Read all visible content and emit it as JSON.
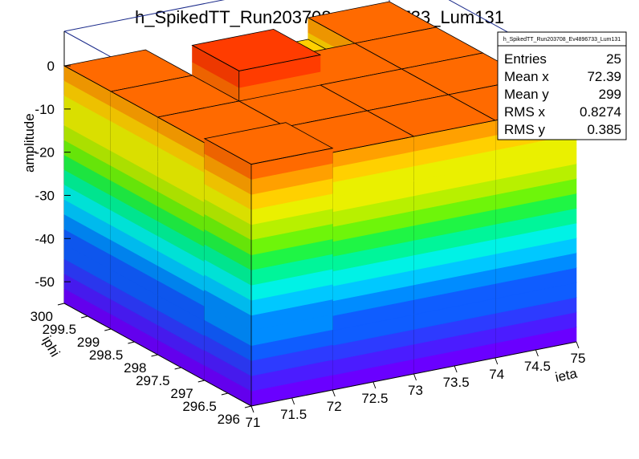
{
  "chart_data": {
    "type": "lego3d",
    "title": "h_SpikedTT_Run203708_Ev4896733_Lum131",
    "xlabel": "ieta",
    "ylabel": "iphi",
    "zlabel": "amplitude",
    "x_range": [
      71,
      75
    ],
    "y_range": [
      296,
      300
    ],
    "z_range": [
      -55,
      8
    ],
    "x_ticks": [
      "71",
      "71.5",
      "72",
      "72.5",
      "73",
      "73.5",
      "74",
      "74.5",
      "75"
    ],
    "y_ticks": [
      "296",
      "296.5",
      "297",
      "297.5",
      "298",
      "298.5",
      "299",
      "299.5",
      "300"
    ],
    "z_ticks": [
      "0",
      "-10",
      "-20",
      "-30",
      "-40",
      "-50"
    ],
    "x_bins": [
      71.5,
      72.5,
      73.5,
      74.5
    ],
    "y_bins": [
      296.5,
      297.5,
      298.5,
      299.5
    ],
    "values": [
      [
        1.0,
        0.0,
        0.0,
        0.0
      ],
      [
        0.0,
        0.0,
        0.0,
        0.0
      ],
      [
        0.0,
        7.0,
        0.0,
        0.0
      ],
      [
        0.0,
        -8.0,
        -5.0,
        0.0
      ]
    ],
    "palette": [
      "#6a00ff",
      "#4b1cff",
      "#2d3bff",
      "#0f5dff",
      "#008cff",
      "#00c8ff",
      "#00f2e6",
      "#00f59a",
      "#1ff545",
      "#6ef50a",
      "#b8f000",
      "#eaf000",
      "#ffd000",
      "#ffa000",
      "#ff6a00",
      "#ff3c00"
    ],
    "grid": false,
    "legend": "top-right"
  },
  "stats": {
    "name": "h_SpikedTT_Run203708_Ev4896733_Lum131",
    "rows": [
      {
        "label": "Entries",
        "value": "25"
      },
      {
        "label": "Mean x",
        "value": "72.39"
      },
      {
        "label": "Mean y",
        "value": "299"
      },
      {
        "label": "RMS x",
        "value": "0.8274"
      },
      {
        "label": "RMS y",
        "value": "0.385"
      }
    ]
  }
}
